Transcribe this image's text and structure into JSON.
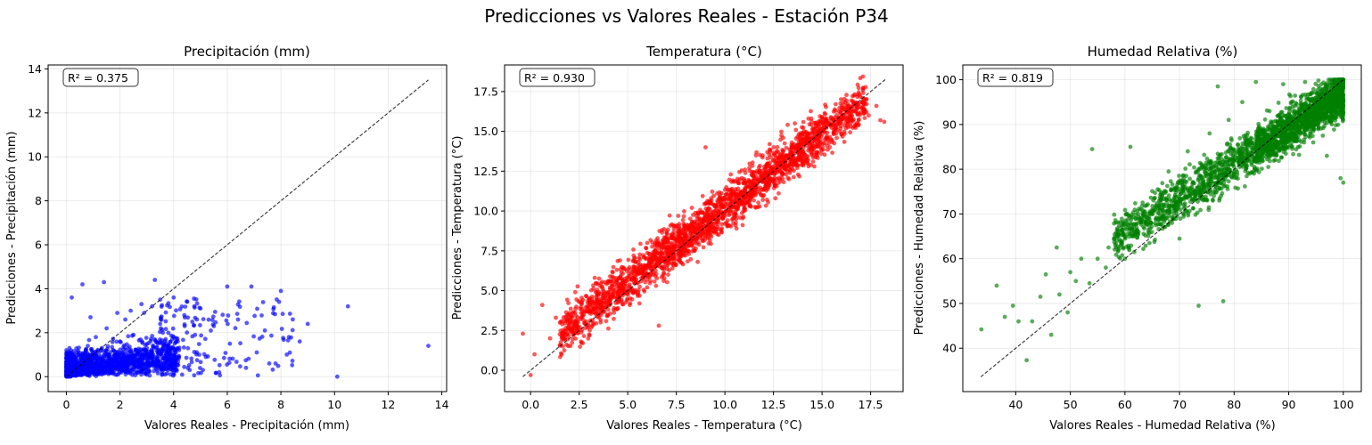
{
  "figure": {
    "title": "Predicciones vs Valores Reales - Estación P34"
  },
  "chart_data": [
    {
      "type": "scatter",
      "title": "Precipitación (mm)",
      "xlabel": "Valores Reales - Precipitación (mm)",
      "ylabel": "Predicciones - Precipitación (mm)",
      "annotation": "R² = 0.375",
      "color": "#0000ff",
      "xlim": [
        -0.68,
        14.18
      ],
      "ylim": [
        -0.68,
        14.18
      ],
      "xticks": [
        0,
        2,
        4,
        6,
        8,
        10,
        12,
        14
      ],
      "yticks": [
        0,
        2,
        4,
        6,
        8,
        10,
        12,
        14
      ],
      "identity_line": [
        0,
        13.5
      ],
      "grid": true,
      "points": [
        [
          0.0,
          0.0
        ],
        [
          0.1,
          0.3
        ],
        [
          0.2,
          0.1
        ],
        [
          0.3,
          0.6
        ],
        [
          0.5,
          0.2
        ],
        [
          0.4,
          1.1
        ],
        [
          0.7,
          0.5
        ],
        [
          0.8,
          1.4
        ],
        [
          1.0,
          0.3
        ],
        [
          1.1,
          1.8
        ],
        [
          1.3,
          0.8
        ],
        [
          1.5,
          2.2
        ],
        [
          1.6,
          1.0
        ],
        [
          1.8,
          0.4
        ],
        [
          2.0,
          1.6
        ],
        [
          2.2,
          2.6
        ],
        [
          2.3,
          0.9
        ],
        [
          2.5,
          1.9
        ],
        [
          2.7,
          0.6
        ],
        [
          2.9,
          2.9
        ],
        [
          3.0,
          1.3
        ],
        [
          3.2,
          3.2
        ],
        [
          3.4,
          0.8
        ],
        [
          3.5,
          2.4
        ],
        [
          3.7,
          1.7
        ],
        [
          3.9,
          0.5
        ],
        [
          4.0,
          3.6
        ],
        [
          4.2,
          1.2
        ],
        [
          4.4,
          2.8
        ],
        [
          4.6,
          0.3
        ],
        [
          4.8,
          1.9
        ],
        [
          5.0,
          3.1
        ],
        [
          5.2,
          0.9
        ],
        [
          5.5,
          2.3
        ],
        [
          5.7,
          0.2
        ],
        [
          6.0,
          4.1
        ],
        [
          6.1,
          1.5
        ],
        [
          6.4,
          2.6
        ],
        [
          6.7,
          0.4
        ],
        [
          6.9,
          4.1
        ],
        [
          7.1,
          1.1
        ],
        [
          7.4,
          2.1
        ],
        [
          7.8,
          0.6
        ],
        [
          8.0,
          3.9
        ],
        [
          8.3,
          1.8
        ],
        [
          8.7,
          1.6
        ],
        [
          9.0,
          2.4
        ],
        [
          10.1,
          0.0
        ],
        [
          10.5,
          3.2
        ],
        [
          13.5,
          1.4
        ],
        [
          0.2,
          3.6
        ],
        [
          0.6,
          4.2
        ],
        [
          1.4,
          4.3
        ],
        [
          2.8,
          3.3
        ],
        [
          3.3,
          4.4
        ],
        [
          0.9,
          2.7
        ],
        [
          1.9,
          2.9
        ],
        [
          2.4,
          3.0
        ],
        [
          3.6,
          2.0
        ],
        [
          4.7,
          2.5
        ]
      ]
    },
    {
      "type": "scatter",
      "title": "Temperatura (°C)",
      "xlabel": "Valores Reales - Temperatura (°C)",
      "ylabel": "Predicciones - Temperatura (°C)",
      "annotation": "R² = 0.930",
      "color": "#ff0000",
      "xlim": [
        -1.34,
        19.17
      ],
      "ylim": [
        -1.34,
        19.17
      ],
      "xticks": [
        0.0,
        2.5,
        5.0,
        7.5,
        10.0,
        12.5,
        15.0,
        17.5
      ],
      "yticks": [
        0.0,
        2.5,
        5.0,
        7.5,
        10.0,
        12.5,
        15.0,
        17.5
      ],
      "tick_format": 1,
      "identity_line": [
        -0.4,
        18.3
      ],
      "grid": true,
      "points": [
        [
          -0.4,
          2.3
        ],
        [
          0.0,
          -0.3
        ],
        [
          0.2,
          1.0
        ],
        [
          0.6,
          4.1
        ],
        [
          1.0,
          2.0
        ],
        [
          1.3,
          3.3
        ],
        [
          1.6,
          2.0
        ],
        [
          2.0,
          3.6
        ],
        [
          2.3,
          4.9
        ],
        [
          2.6,
          1.8
        ],
        [
          3.0,
          4.5
        ],
        [
          3.3,
          5.8
        ],
        [
          3.6,
          3.0
        ],
        [
          4.0,
          5.6
        ],
        [
          4.3,
          3.9
        ],
        [
          4.6,
          6.9
        ],
        [
          5.0,
          5.0
        ],
        [
          5.3,
          7.2
        ],
        [
          5.6,
          4.2
        ],
        [
          6.0,
          8.0
        ],
        [
          6.3,
          6.0
        ],
        [
          6.6,
          2.8
        ],
        [
          7.0,
          8.6
        ],
        [
          7.3,
          6.4
        ],
        [
          7.6,
          9.7
        ],
        [
          8.0,
          7.5
        ],
        [
          8.3,
          10.2
        ],
        [
          8.6,
          6.8
        ],
        [
          9.0,
          14.0
        ],
        [
          9.3,
          8.4
        ],
        [
          9.6,
          11.1
        ],
        [
          10.0,
          9.2
        ],
        [
          10.3,
          12.3
        ],
        [
          10.6,
          8.9
        ],
        [
          11.0,
          12.0
        ],
        [
          11.3,
          10.3
        ],
        [
          11.6,
          13.5
        ],
        [
          12.0,
          11.0
        ],
        [
          12.3,
          14.2
        ],
        [
          12.6,
          10.8
        ],
        [
          13.0,
          14.6
        ],
        [
          13.3,
          12.0
        ],
        [
          13.6,
          15.5
        ],
        [
          14.0,
          13.0
        ],
        [
          14.3,
          15.8
        ],
        [
          14.6,
          12.8
        ],
        [
          15.0,
          15.9
        ],
        [
          15.4,
          14.0
        ],
        [
          15.7,
          16.3
        ],
        [
          16.0,
          14.8
        ],
        [
          16.4,
          16.6
        ],
        [
          16.7,
          15.4
        ],
        [
          17.0,
          16.2
        ],
        [
          17.4,
          16.0
        ],
        [
          17.8,
          16.6
        ],
        [
          18.0,
          15.7
        ],
        [
          18.2,
          15.6
        ]
      ]
    },
    {
      "type": "scatter",
      "title": "Humedad Relativa (%)",
      "xlabel": "Valores Reales - Humedad Relativa (%)",
      "ylabel": "Predicciones - Humedad Relativa (%)",
      "annotation": "R² = 0.819",
      "color": "#008000",
      "xlim": [
        30.3,
        103.3
      ],
      "ylim": [
        30.3,
        103.3
      ],
      "xticks": [
        40,
        50,
        60,
        70,
        80,
        90,
        100
      ],
      "yticks": [
        40,
        50,
        60,
        70,
        80,
        90,
        100
      ],
      "identity_line": [
        33.6,
        100.0
      ],
      "grid": true,
      "points": [
        [
          33.7,
          44.2
        ],
        [
          36.5,
          54.0
        ],
        [
          38.0,
          47.0
        ],
        [
          39.5,
          49.5
        ],
        [
          40.5,
          46.0
        ],
        [
          42.0,
          37.3
        ],
        [
          43.0,
          46.0
        ],
        [
          44.5,
          51.5
        ],
        [
          45.5,
          56.5
        ],
        [
          46.5,
          43.0
        ],
        [
          47.5,
          62.5
        ],
        [
          48.0,
          52.0
        ],
        [
          49.5,
          48.0
        ],
        [
          50.0,
          57.0
        ],
        [
          51.0,
          55.0
        ],
        [
          52.0,
          60.0
        ],
        [
          53.5,
          54.5
        ],
        [
          54.0,
          84.5
        ],
        [
          55.0,
          60.0
        ],
        [
          56.5,
          58.0
        ],
        [
          57.0,
          62.5
        ],
        [
          58.0,
          64.5
        ],
        [
          59.5,
          66.5
        ],
        [
          60.0,
          60.0
        ],
        [
          61.0,
          85.0
        ],
        [
          62.5,
          66.0
        ],
        [
          63.5,
          69.5
        ],
        [
          64.5,
          63.5
        ],
        [
          66.0,
          75.5
        ],
        [
          67.5,
          69.0
        ],
        [
          68.0,
          79.5
        ],
        [
          69.5,
          72.5
        ],
        [
          70.0,
          64.5
        ],
        [
          71.5,
          84.0
        ],
        [
          72.5,
          77.0
        ],
        [
          73.5,
          49.5
        ],
        [
          74.5,
          80.0
        ],
        [
          75.5,
          88.0
        ],
        [
          76.5,
          75.5
        ],
        [
          77.0,
          98.5
        ],
        [
          78.0,
          50.5
        ],
        [
          79.0,
          91.0
        ],
        [
          80.0,
          82.0
        ],
        [
          81.5,
          95.0
        ],
        [
          82.5,
          85.0
        ],
        [
          84.0,
          99.5
        ],
        [
          85.5,
          88.0
        ],
        [
          86.5,
          93.0
        ],
        [
          88.0,
          84.5
        ],
        [
          89.0,
          99.0
        ],
        [
          90.5,
          95.0
        ],
        [
          92.0,
          89.0
        ],
        [
          93.0,
          99.5
        ],
        [
          94.5,
          86.0
        ],
        [
          96.0,
          99.0
        ],
        [
          97.0,
          83.0
        ],
        [
          98.5,
          96.0
        ],
        [
          99.5,
          78.0
        ],
        [
          100.0,
          100.0
        ],
        [
          100.0,
          77.0
        ]
      ]
    }
  ]
}
